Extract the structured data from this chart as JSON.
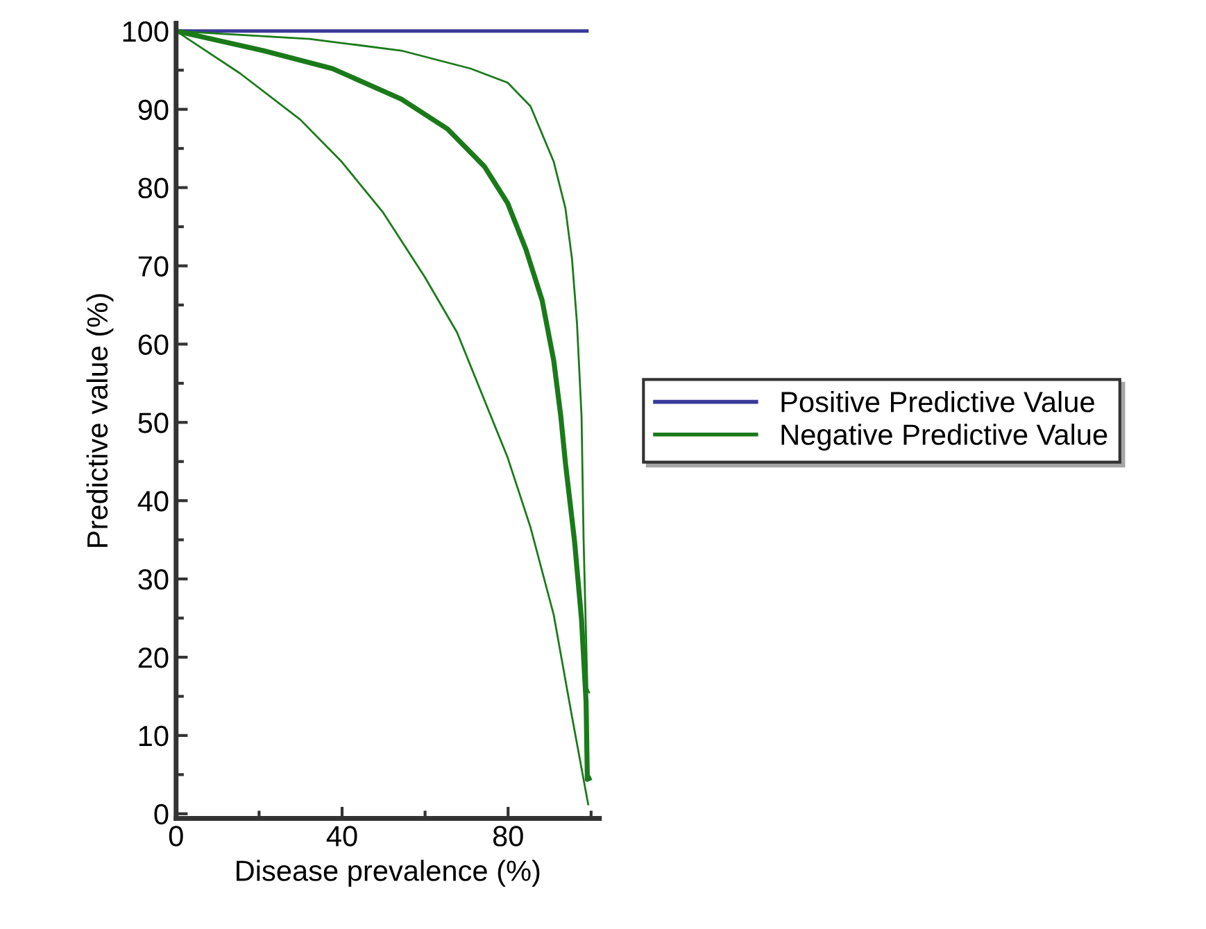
{
  "chart_data": {
    "type": "line",
    "xlabel": "Disease prevalence (%)",
    "ylabel": "Predictive value (%)",
    "xlim": [
      0,
      102
    ],
    "ylim": [
      -0.6,
      101
    ],
    "xticks": [
      0,
      {
        "value": 20,
        "label": null
      },
      40,
      {
        "value": 60,
        "label": null
      },
      80,
      {
        "value": 100,
        "label": null
      }
    ],
    "yticks": [
      0,
      {
        "value": 5,
        "label": null
      },
      10,
      {
        "value": 15,
        "label": null
      },
      20,
      {
        "value": 25,
        "label": null
      },
      30,
      {
        "value": 35,
        "label": null
      },
      40,
      {
        "value": 45,
        "label": null
      },
      50,
      {
        "value": 55,
        "label": null
      },
      60,
      {
        "value": 65,
        "label": null
      },
      70,
      {
        "value": 75,
        "label": null
      },
      80,
      {
        "value": 85,
        "label": null
      },
      90,
      {
        "value": 95,
        "label": null
      },
      100
    ],
    "grid": false,
    "legend": "right",
    "marker": "none",
    "line_style": "solid",
    "series": [
      {
        "name": "Positive Predictive Value",
        "color": "#3a3a9a",
        "x": [
          0,
          99
        ],
        "values": [
          100,
          100
        ]
      },
      {
        "name": "Negative Predictive Value",
        "color": "#1a7a1a",
        "x": [
          0,
          21,
          37.7,
          54.3,
          65.4,
          74.3,
          79.9,
          84.3,
          88.2,
          91,
          92.7,
          93.8,
          96,
          97.7,
          98.8,
          99.1,
          99.5
        ],
        "values": [
          100,
          97.5,
          95.2,
          91.3,
          87.5,
          82.7,
          78,
          72.1,
          65.6,
          57.9,
          50.8,
          44.9,
          34.9,
          24.8,
          14.2,
          4.4,
          4.5
        ]
      },
      {
        "color": "#1a7a1a",
        "x": [
          0,
          32.1,
          54.3,
          71,
          79.9,
          85.4,
          91,
          93.8,
          95.4,
          96.6,
          97.7,
          98.2,
          99.1,
          99.5
        ],
        "values": [
          100,
          99,
          97.5,
          95.2,
          93.4,
          90.4,
          83.3,
          77.4,
          70.9,
          62.7,
          50.8,
          34.9,
          16,
          15.5
        ]
      },
      {
        "color": "#1a7a1a",
        "x": [
          0,
          15.4,
          29.9,
          39.9,
          49.9,
          59.9,
          67.7,
          75.4,
          79.9,
          85.4,
          91,
          95.4,
          99.3
        ],
        "values": [
          100,
          94.6,
          88.7,
          83.3,
          76.8,
          68.6,
          61.5,
          51.4,
          45.5,
          36.6,
          25.4,
          12.4,
          1.2
        ]
      }
    ]
  }
}
